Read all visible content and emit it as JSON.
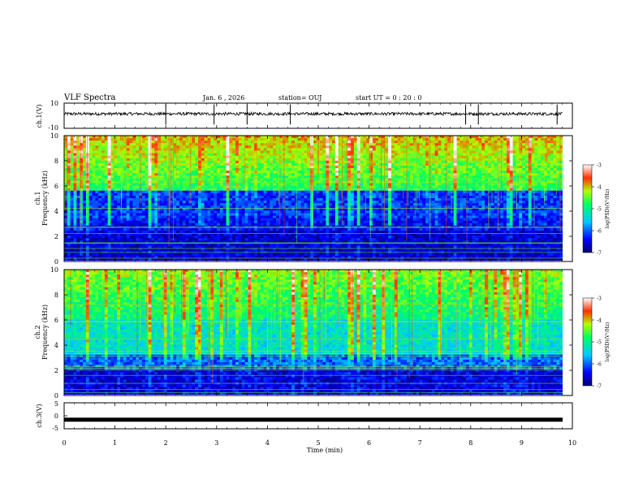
{
  "header": {
    "title": "VLF Spectra",
    "date": "Jan. 6 , 2026",
    "station": "station= OUJ",
    "start": "start  UT =   0 : 20 : 0"
  },
  "chart_data": [
    {
      "type": "line",
      "name": "ch1-waveform",
      "ylabel": "ch.1(V)",
      "ylim": [
        -10,
        10
      ],
      "yticks": [
        "10",
        "-10"
      ],
      "xlim": [
        0,
        10
      ],
      "baseline": 0,
      "spike_times_min": [
        2.0,
        2.95,
        3.6,
        4.45,
        7.9,
        8.15,
        9.7
      ]
    },
    {
      "type": "heatmap",
      "name": "ch1-spectrogram",
      "ylabel": "ch.1\nFrequency (kHz)",
      "ylim": [
        0,
        10
      ],
      "yticks": [
        "0",
        "2",
        "4",
        "6",
        "8",
        "10"
      ],
      "xlim": [
        0,
        9.8
      ],
      "colorbar": {
        "label": "log(PSD)(V²/Hz)",
        "range": [
          -7,
          -3
        ],
        "ticks": [
          "-3",
          "-4",
          "-5",
          "-6",
          "-7"
        ]
      }
    },
    {
      "type": "heatmap",
      "name": "ch2-spectrogram",
      "ylabel": "ch.2\nFrequency (kHz)",
      "ylim": [
        0,
        10
      ],
      "yticks": [
        "0",
        "2",
        "4",
        "6",
        "8",
        "10"
      ],
      "xlim": [
        0,
        9.8
      ],
      "colorbar": {
        "label": "log(PSD)(V²/Hz)",
        "range": [
          -7,
          -3
        ],
        "ticks": [
          "-3",
          "-4",
          "-5",
          "-6",
          "-7"
        ]
      }
    },
    {
      "type": "line",
      "name": "ch3-waveform",
      "ylabel": "ch.3(V)",
      "ylim": [
        -5,
        5
      ],
      "yticks": [
        "5",
        "0",
        "-5"
      ],
      "xlim": [
        0,
        10
      ],
      "level": -1.5
    }
  ],
  "xaxis": {
    "label": "Time (min)",
    "ticks": [
      "0",
      "1",
      "2",
      "3",
      "4",
      "5",
      "6",
      "7",
      "8",
      "9",
      "10"
    ]
  },
  "colors": {
    "spec_low": "#000066",
    "spec_mid": "#00ccff",
    "spec_high": "#ff0000",
    "waveform": "#000000"
  }
}
